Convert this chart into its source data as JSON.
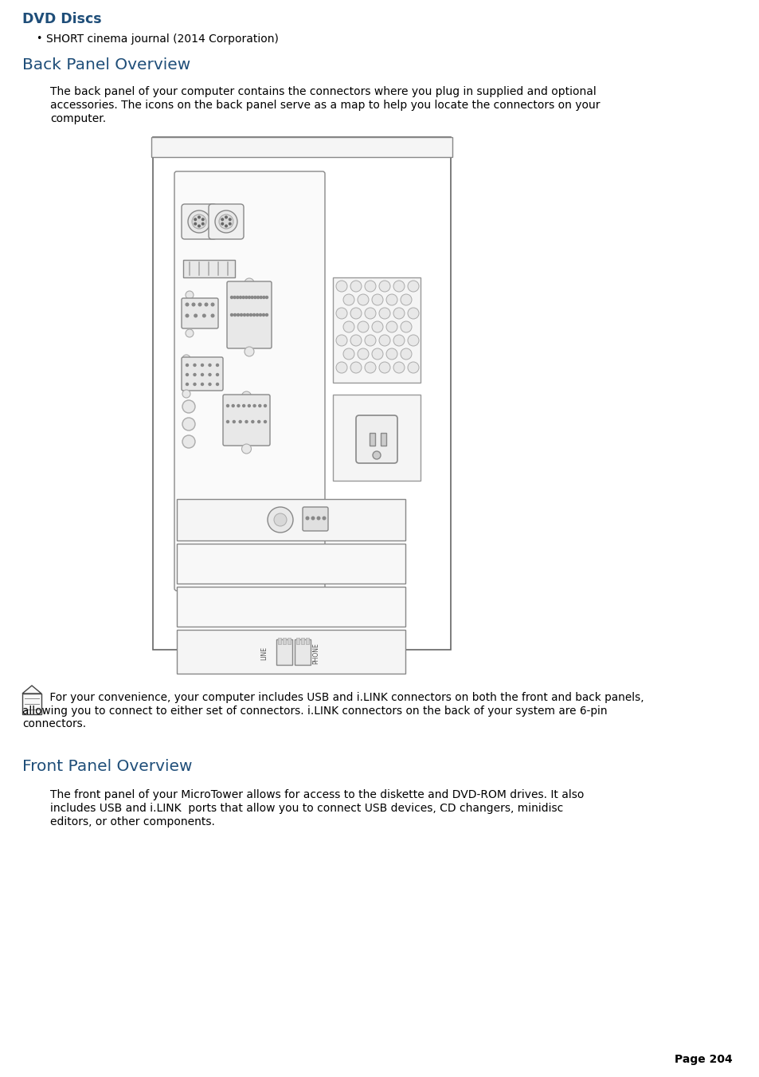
{
  "bg_color": "#ffffff",
  "heading_color": "#1f4e79",
  "text_color": "#000000",
  "title1": "DVD Discs",
  "bullet1": "SHORT cinema journal (2014 Corporation)",
  "heading2": "Back Panel Overview",
  "para1_line1": "The back panel of your computer contains the connectors where you plug in supplied and optional",
  "para1_line2": "accessories. The icons on the back panel serve as a map to help you locate the connectors on your",
  "para1_line3": "computer.",
  "note_text": " For your convenience, your computer includes USB and i.LINK connectors on both the front and back panels,",
  "note_line2": "allowing you to connect to either set of connectors. i.LINK connectors on the back of your system are 6-pin",
  "note_line3": "connectors.",
  "heading3": "Front Panel Overview",
  "para2_line1": "The front panel of your MicroTower allows for access to the diskette and DVD-ROM drives. It also",
  "para2_line2": "includes USB and i.LINK  ports that allow you to connect USB devices, CD changers, minidisc",
  "para2_line3": "editors, or other components.",
  "page_label": "Page 204"
}
